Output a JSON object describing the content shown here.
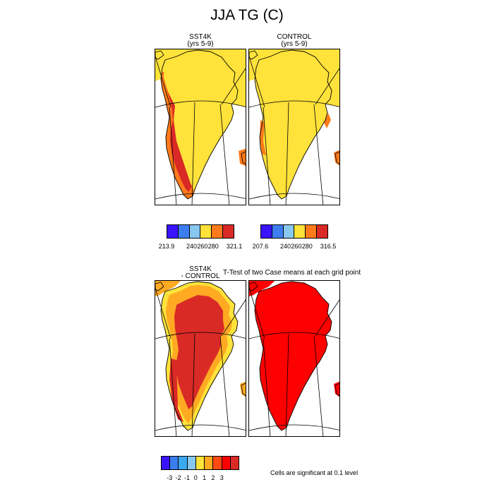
{
  "figure": {
    "title": "JJA TG (C)",
    "panels": {
      "sst4k": {
        "title_line1": "SST4K",
        "title_line2": "(yrs 5-9)",
        "field": "warm-edge"
      },
      "control": {
        "title_line1": "CONTROL",
        "title_line2": "(yrs 5-9)",
        "field": "thin-edge"
      },
      "diff": {
        "title_line1": "SST4K",
        "title_line2": "- CONTROL",
        "field": "diff"
      },
      "ttest": {
        "title": "T-Test of two Case means at each grid point",
        "field": "ttest"
      }
    },
    "colorbars": {
      "sst4k": {
        "colors": [
          "#3a14ff",
          "#3c7df0",
          "#88c8f0",
          "#ffe23a",
          "#ff7a1a",
          "#d92a26"
        ],
        "labels": [
          "213.9",
          "240",
          "260",
          "280",
          "321.1"
        ]
      },
      "control": {
        "colors": [
          "#3a14ff",
          "#3c7df0",
          "#88c8f0",
          "#ffe23a",
          "#ff7a1a",
          "#d92a26"
        ],
        "labels": [
          "207.6",
          "240",
          "260",
          "280",
          "316.5"
        ]
      },
      "diff": {
        "colors": [
          "#3a14ff",
          "#3c7df0",
          "#3aa8f0",
          "#88c8f0",
          "#ffe23a",
          "#ffaa22",
          "#ff4a14",
          "#ff0000",
          "#d92a26"
        ],
        "labels": [
          "-3",
          "-2",
          "-1",
          "0",
          "1",
          "2",
          "3"
        ]
      }
    },
    "footnote": "Cells are significant at 0.1 level",
    "colors": {
      "yellow": "#ffe23a",
      "orange": "#ff7a1a",
      "darkred": "#d92a26",
      "red": "#ff0000",
      "lightorange": "#ffaa22"
    }
  }
}
